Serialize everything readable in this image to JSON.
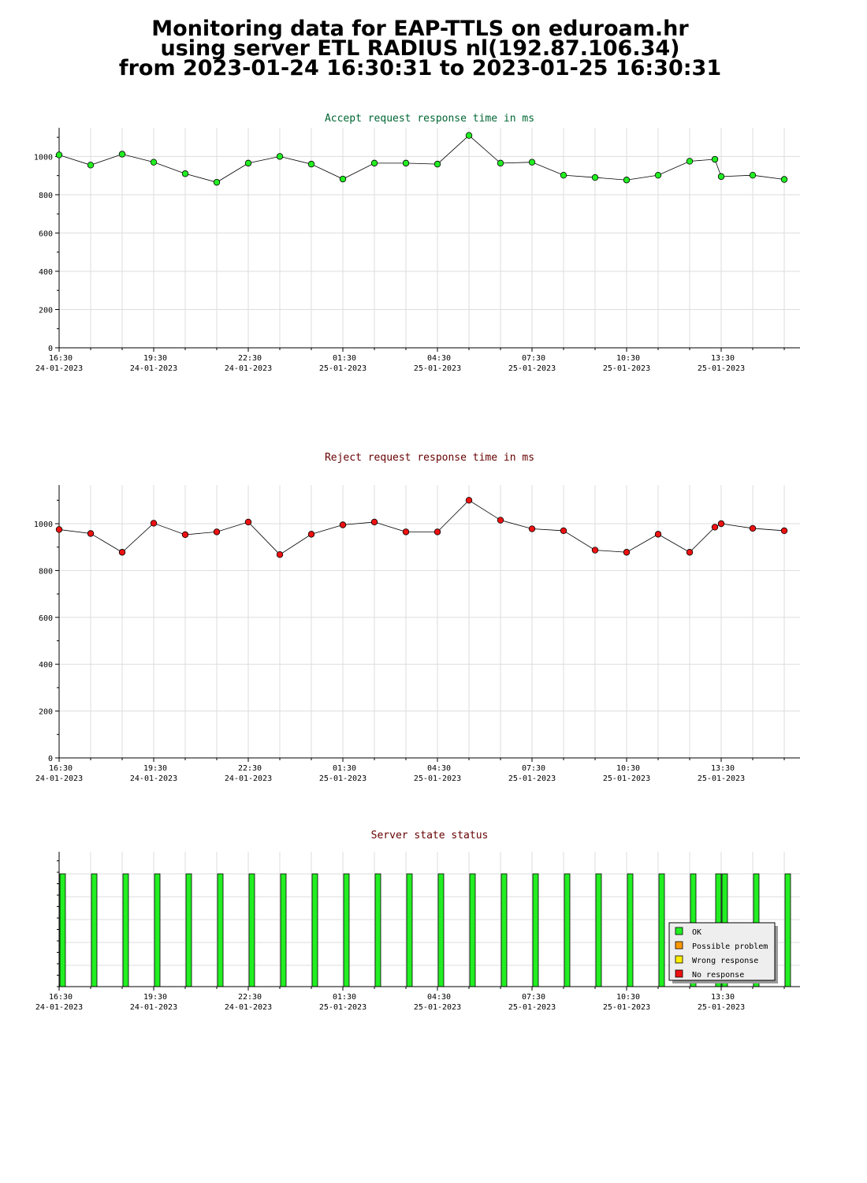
{
  "page": {
    "title_lines": [
      "Monitoring data for EAP-TTLS on eduroam.hr",
      "using server ETL RADIUS nl(192.87.106.34)",
      "from 2023-01-24 16:30:31 to 2023-01-25 16:30:31"
    ]
  },
  "x_ticks": [
    {
      "time": "16:30",
      "date": "24-01-2023",
      "h": 0
    },
    {
      "time": "19:30",
      "date": "24-01-2023",
      "h": 3
    },
    {
      "time": "22:30",
      "date": "24-01-2023",
      "h": 6
    },
    {
      "time": "01:30",
      "date": "25-01-2023",
      "h": 9
    },
    {
      "time": "04:30",
      "date": "25-01-2023",
      "h": 12
    },
    {
      "time": "07:30",
      "date": "25-01-2023",
      "h": 15
    },
    {
      "time": "10:30",
      "date": "25-01-2023",
      "h": 18
    },
    {
      "time": "13:30",
      "date": "25-01-2023",
      "h": 21
    }
  ],
  "colors": {
    "accept_title": "#006633",
    "reject_title": "#660000",
    "status_title": "#660000",
    "ok": "#22ee22",
    "possible_problem": "#ff9900",
    "wrong_response": "#ffee00",
    "no_response": "#ee1111",
    "grid": "#dddddd"
  },
  "chart_data": [
    {
      "id": "accept",
      "type": "line",
      "title": "Accept request response time in ms",
      "x_unit": "hours since 24-01-2023 16:30",
      "xlim": [
        0,
        23.5
      ],
      "ylim": [
        0,
        1150
      ],
      "yticks": [
        0,
        200,
        400,
        600,
        800,
        1000
      ],
      "grid": true,
      "marker_color": "#22ee22",
      "x": [
        0,
        1,
        2,
        3,
        4,
        5,
        6,
        7,
        8,
        9,
        10,
        11,
        12,
        13,
        14,
        15,
        16,
        17,
        18,
        19,
        20,
        20.8,
        21,
        22,
        23
      ],
      "y": [
        1008,
        955,
        1012,
        970,
        910,
        865,
        965,
        1000,
        960,
        882,
        965,
        965,
        960,
        1110,
        965,
        970,
        902,
        890,
        877,
        902,
        975,
        985,
        895,
        902,
        880
      ]
    },
    {
      "id": "reject",
      "type": "line",
      "title": "Reject request response time in ms",
      "x_unit": "hours since 24-01-2023 16:30",
      "xlim": [
        0,
        23.5
      ],
      "ylim": [
        0,
        1165
      ],
      "yticks": [
        0,
        200,
        400,
        600,
        800,
        1000
      ],
      "grid": true,
      "marker_color": "#ee1111",
      "x": [
        0,
        1,
        2,
        3,
        4,
        5,
        6,
        7,
        8,
        9,
        10,
        11,
        12,
        13,
        14,
        15,
        16,
        17,
        18,
        19,
        20,
        20.8,
        21,
        22,
        23
      ],
      "y": [
        975,
        958,
        878,
        1002,
        953,
        965,
        1007,
        868,
        955,
        995,
        1007,
        965,
        965,
        1100,
        1015,
        978,
        970,
        887,
        878,
        955,
        878,
        985,
        1000,
        980,
        970
      ]
    },
    {
      "id": "status",
      "type": "bar",
      "title": "Server state status",
      "x_unit": "hours since 24-01-2023 16:30",
      "xlim": [
        0,
        23.5
      ],
      "grid": true,
      "x": [
        0,
        1,
        2,
        3,
        4,
        5,
        6,
        7,
        8,
        9,
        10,
        11,
        12,
        13,
        14,
        15,
        16,
        17,
        18,
        19,
        20,
        20.8,
        21,
        22,
        23
      ],
      "states": [
        "OK",
        "OK",
        "OK",
        "OK",
        "OK",
        "OK",
        "OK",
        "OK",
        "OK",
        "OK",
        "OK",
        "OK",
        "OK",
        "OK",
        "OK",
        "OK",
        "OK",
        "OK",
        "OK",
        "OK",
        "OK",
        "OK",
        "OK",
        "OK",
        "OK"
      ],
      "legend": [
        {
          "label": "OK",
          "color": "#22ee22"
        },
        {
          "label": "Possible problem",
          "color": "#ff9900"
        },
        {
          "label": "Wrong response",
          "color": "#ffee00"
        },
        {
          "label": "No response",
          "color": "#ee1111"
        }
      ]
    }
  ]
}
